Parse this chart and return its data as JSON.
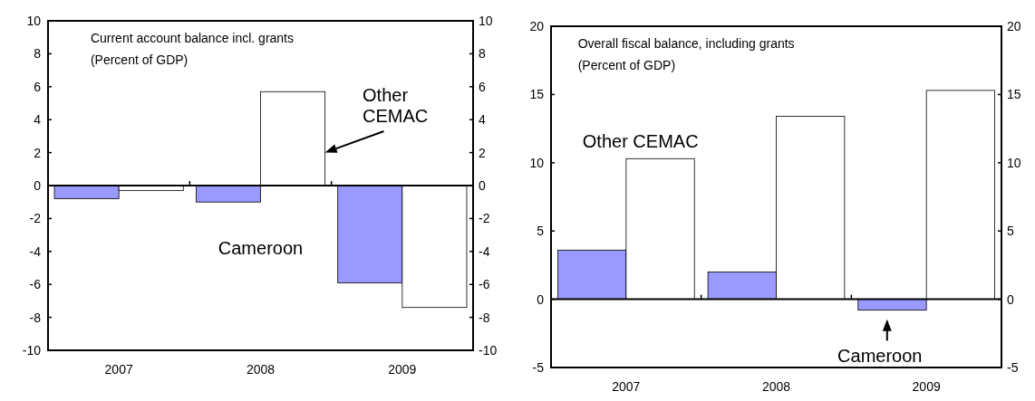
{
  "chart_data": [
    {
      "type": "bar",
      "title": "Current account balance incl. grants",
      "subtitle": "(Percent of GDP)",
      "categories": [
        "2007",
        "2008",
        "2009"
      ],
      "series": [
        {
          "name": "Cameroon",
          "color": "#9999ff",
          "values": [
            -0.8,
            -1.0,
            -5.9
          ]
        },
        {
          "name": "Other CEMAC",
          "color": "#ffffff",
          "values": [
            -0.3,
            5.7,
            -7.4
          ]
        }
      ],
      "ylim": [
        -10,
        10
      ],
      "yticks": [
        -10,
        -8,
        -6,
        -4,
        -2,
        0,
        2,
        4,
        6,
        8,
        10
      ],
      "y2lim": [
        -10,
        10
      ],
      "y2ticks": [
        -10,
        -8,
        -6,
        -4,
        -2,
        0,
        2,
        4,
        6,
        8,
        10
      ]
    },
    {
      "type": "bar",
      "title": "Overall fiscal balance, including grants",
      "subtitle": "(Percent of GDP)",
      "categories": [
        "2007",
        "2008",
        "2009"
      ],
      "series": [
        {
          "name": "Cameroon",
          "color": "#9999ff",
          "values": [
            3.6,
            2.0,
            -0.8
          ]
        },
        {
          "name": "Other CEMAC",
          "color": "#ffffff",
          "values": [
            10.3,
            13.4,
            15.3
          ]
        }
      ],
      "ylim": [
        -5,
        20
      ],
      "yticks": [
        -5,
        0,
        5,
        10,
        15,
        20
      ],
      "y2lim": [
        -5,
        20
      ],
      "y2ticks": [
        -5,
        0,
        5,
        10,
        15,
        20
      ]
    }
  ]
}
